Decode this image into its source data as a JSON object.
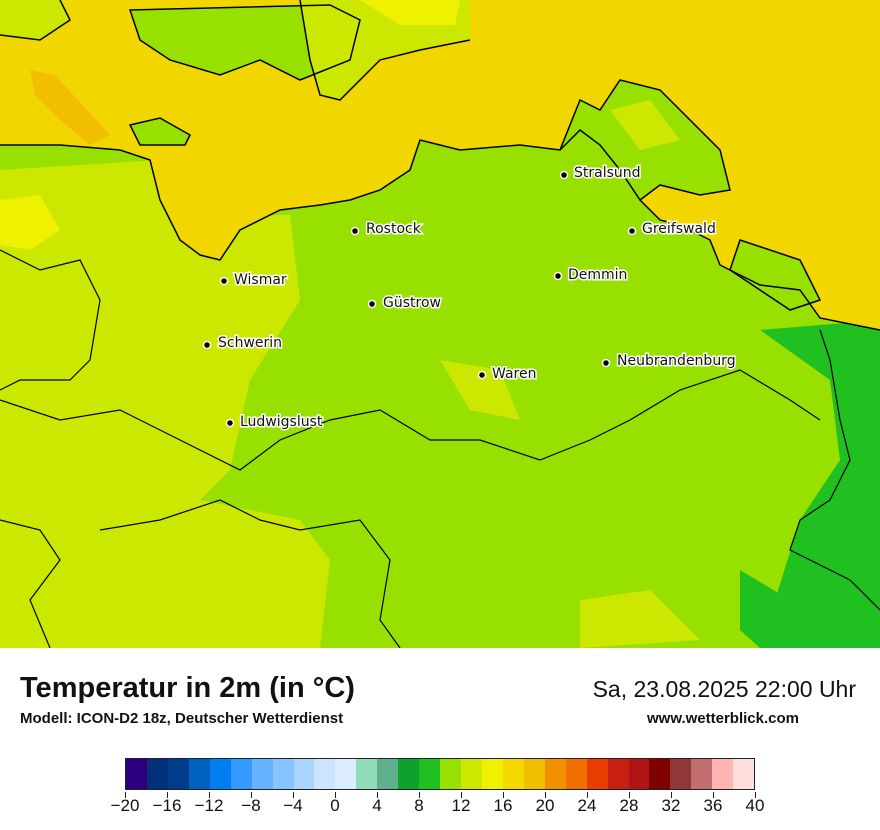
{
  "legend": {
    "title": "Temperatur in 2m (in °C)",
    "model": "Modell: ICON-D2 18z, Deutscher Wetterdienst",
    "datetime": "Sa, 23.08.2025 22:00 Uhr",
    "website": "www.wetterblick.com"
  },
  "colorbar": {
    "min": -20,
    "max": 40,
    "step": 2,
    "tick_labels": [
      "−20",
      "−16",
      "−12",
      "−8",
      "−4",
      "0",
      "4",
      "8",
      "12",
      "16",
      "20",
      "24",
      "28",
      "32",
      "36",
      "40"
    ],
    "colors": [
      "#2b0080",
      "#00307a",
      "#003c8c",
      "#0060c0",
      "#0080f0",
      "#3399ff",
      "#66b3ff",
      "#88c4ff",
      "#aad4ff",
      "#cce4ff",
      "#dcecff",
      "#90dcb8",
      "#60b090",
      "#10a030",
      "#20c020",
      "#98e000",
      "#cce800",
      "#eef200",
      "#f4d800",
      "#f2be00",
      "#f29000",
      "#f07000",
      "#e83c00",
      "#c82010",
      "#b01414",
      "#800000",
      "#903838",
      "#c06e6e",
      "#ffb4b4",
      "#ffdede"
    ]
  },
  "cities": [
    {
      "name": "Stralsund"
    },
    {
      "name": "Rostock"
    },
    {
      "name": "Greifswald"
    },
    {
      "name": "Wismar"
    },
    {
      "name": "Demmin"
    },
    {
      "name": "Güstrow"
    },
    {
      "name": "Schwerin"
    },
    {
      "name": "Neubrandenburg"
    },
    {
      "name": "Waren"
    },
    {
      "name": "Ludwigslust"
    }
  ],
  "map_colors": {
    "sea_warm": "#f2d600",
    "sea_warmer": "#f2be00",
    "land_green": "#98e000",
    "land_lightgreen": "#cce800",
    "land_yellow": "#eef200",
    "land_darkgreen": "#20c020"
  }
}
